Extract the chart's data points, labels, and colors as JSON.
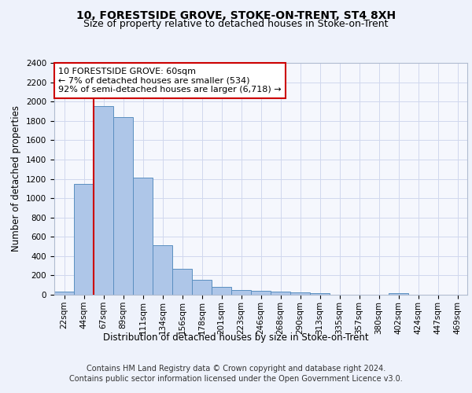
{
  "title": "10, FORESTSIDE GROVE, STOKE-ON-TRENT, ST4 8XH",
  "subtitle": "Size of property relative to detached houses in Stoke-on-Trent",
  "xlabel": "Distribution of detached houses by size in Stoke-on-Trent",
  "ylabel": "Number of detached properties",
  "categories": [
    "22sqm",
    "44sqm",
    "67sqm",
    "89sqm",
    "111sqm",
    "134sqm",
    "156sqm",
    "178sqm",
    "201sqm",
    "223sqm",
    "246sqm",
    "268sqm",
    "290sqm",
    "313sqm",
    "335sqm",
    "357sqm",
    "380sqm",
    "402sqm",
    "424sqm",
    "447sqm",
    "469sqm"
  ],
  "values": [
    30,
    1150,
    1950,
    1840,
    1210,
    515,
    265,
    155,
    80,
    48,
    40,
    30,
    22,
    15,
    0,
    0,
    0,
    20,
    0,
    0,
    0
  ],
  "bar_color": "#aec6e8",
  "bar_edge_color": "#5a8fc0",
  "property_line_x": 1.5,
  "annotation_text": "10 FORESTSIDE GROVE: 60sqm\n← 7% of detached houses are smaller (534)\n92% of semi-detached houses are larger (6,718) →",
  "annotation_box_color": "#ffffff",
  "annotation_box_edge_color": "#cc0000",
  "ylim": [
    0,
    2400
  ],
  "yticks": [
    0,
    200,
    400,
    600,
    800,
    1000,
    1200,
    1400,
    1600,
    1800,
    2000,
    2200,
    2400
  ],
  "footer_line1": "Contains HM Land Registry data © Crown copyright and database right 2024.",
  "footer_line2": "Contains public sector information licensed under the Open Government Licence v3.0.",
  "bg_color": "#eef2fb",
  "plot_bg_color": "#f5f7fd",
  "grid_color": "#d0d8ee",
  "title_fontsize": 10,
  "subtitle_fontsize": 9,
  "axis_label_fontsize": 8.5,
  "tick_fontsize": 7.5,
  "annotation_fontsize": 8,
  "footer_fontsize": 7
}
